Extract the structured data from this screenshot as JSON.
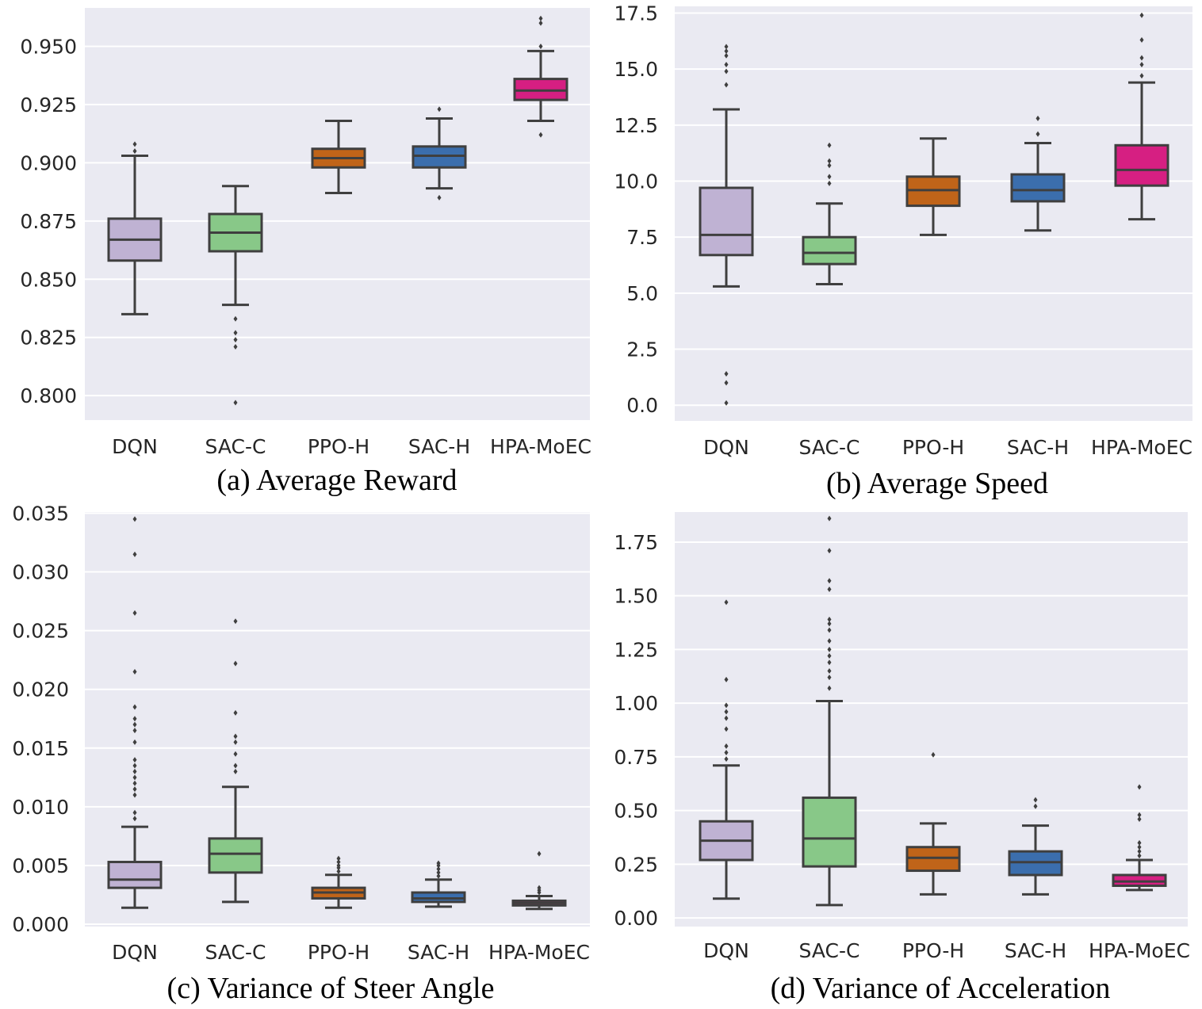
{
  "chart_data": [
    {
      "type": "box",
      "caption": "(a) Average Reward",
      "categories": [
        "DQN",
        "SAC-C",
        "PPO-H",
        "SAC-H",
        "HPA-MoEC"
      ],
      "colors": [
        "#bfb2d3",
        "#88c888",
        "#c06419",
        "#3b6ead",
        "#d61f82"
      ],
      "yticks": [
        "0.800",
        "0.825",
        "0.850",
        "0.875",
        "0.900",
        "0.925",
        "0.950"
      ],
      "ylim": [
        0.7895,
        0.9665
      ],
      "boxes": [
        {
          "whislo": 0.835,
          "q1": 0.858,
          "med": 0.867,
          "q3": 0.876,
          "whishi": 0.903,
          "fliers": [
            0.905,
            0.908
          ]
        },
        {
          "whislo": 0.839,
          "q1": 0.862,
          "med": 0.87,
          "q3": 0.878,
          "whishi": 0.89,
          "fliers": [
            0.833,
            0.827,
            0.824,
            0.821,
            0.797
          ]
        },
        {
          "whislo": 0.887,
          "q1": 0.898,
          "med": 0.902,
          "q3": 0.906,
          "whishi": 0.918,
          "fliers": []
        },
        {
          "whislo": 0.889,
          "q1": 0.898,
          "med": 0.903,
          "q3": 0.907,
          "whishi": 0.919,
          "fliers": [
            0.923,
            0.885
          ]
        },
        {
          "whislo": 0.918,
          "q1": 0.927,
          "med": 0.931,
          "q3": 0.936,
          "whishi": 0.948,
          "fliers": [
            0.95,
            0.96,
            0.962,
            0.912
          ]
        }
      ]
    },
    {
      "type": "box",
      "caption": "(b) Average Speed",
      "categories": [
        "DQN",
        "SAC-C",
        "PPO-H",
        "SAC-H",
        "HPA-MoEC"
      ],
      "colors": [
        "#bfb2d3",
        "#88c888",
        "#c06419",
        "#3b6ead",
        "#d61f82"
      ],
      "yticks": [
        "0.0",
        "2.5",
        "5.0",
        "7.5",
        "10.0",
        "12.5",
        "15.0",
        "17.5"
      ],
      "ylim": [
        -0.7,
        17.8
      ],
      "boxes": [
        {
          "whislo": 5.3,
          "q1": 6.7,
          "med": 7.6,
          "q3": 9.7,
          "whishi": 13.2,
          "fliers": [
            14.3,
            14.9,
            15.2,
            15.6,
            15.8,
            16.0,
            1.4,
            1.0,
            0.1
          ]
        },
        {
          "whislo": 5.4,
          "q1": 6.3,
          "med": 6.8,
          "q3": 7.5,
          "whishi": 9.0,
          "fliers": [
            9.9,
            10.2,
            10.7,
            10.9,
            11.6
          ]
        },
        {
          "whislo": 7.6,
          "q1": 8.9,
          "med": 9.6,
          "q3": 10.2,
          "whishi": 11.9,
          "fliers": []
        },
        {
          "whislo": 7.8,
          "q1": 9.1,
          "med": 9.6,
          "q3": 10.3,
          "whishi": 11.7,
          "fliers": [
            12.1,
            12.8
          ]
        },
        {
          "whislo": 8.3,
          "q1": 9.8,
          "med": 10.5,
          "q3": 11.6,
          "whishi": 14.4,
          "fliers": [
            14.7,
            15.2,
            15.5,
            16.3,
            17.4
          ]
        }
      ]
    },
    {
      "type": "box",
      "caption": "(c) Variance of Steer Angle",
      "categories": [
        "DQN",
        "SAC-C",
        "PPO-H",
        "SAC-H",
        "HPA-MoEC"
      ],
      "colors": [
        "#bfb2d3",
        "#88c888",
        "#c06419",
        "#3b6ead",
        "#d61f82"
      ],
      "yticks": [
        "0.000",
        "0.005",
        "0.010",
        "0.015",
        "0.020",
        "0.025",
        "0.030",
        "0.035"
      ],
      "ylim": [
        -0.0002,
        0.0351
      ],
      "boxes": [
        {
          "whislo": 0.0014,
          "q1": 0.0031,
          "med": 0.0038,
          "q3": 0.0053,
          "whishi": 0.0083,
          "fliers": [
            0.009,
            0.0095,
            0.011,
            0.0115,
            0.012,
            0.0125,
            0.013,
            0.0135,
            0.014,
            0.0155,
            0.0165,
            0.017,
            0.0175,
            0.0185,
            0.0215,
            0.0265,
            0.0315,
            0.0345
          ]
        },
        {
          "whislo": 0.0019,
          "q1": 0.0044,
          "med": 0.006,
          "q3": 0.0073,
          "whishi": 0.0117,
          "fliers": [
            0.013,
            0.0135,
            0.0145,
            0.0155,
            0.016,
            0.018,
            0.0222,
            0.0258
          ]
        },
        {
          "whislo": 0.0014,
          "q1": 0.0022,
          "med": 0.0027,
          "q3": 0.0031,
          "whishi": 0.0042,
          "fliers": [
            0.0045,
            0.0048,
            0.005,
            0.0053,
            0.0056
          ]
        },
        {
          "whislo": 0.0015,
          "q1": 0.0019,
          "med": 0.0022,
          "q3": 0.0027,
          "whishi": 0.0038,
          "fliers": [
            0.0041,
            0.0044,
            0.0047,
            0.005,
            0.0052
          ]
        },
        {
          "whislo": 0.0013,
          "q1": 0.0016,
          "med": 0.0018,
          "q3": 0.002,
          "whishi": 0.0024,
          "fliers": [
            0.0027,
            0.0029,
            0.0031,
            0.006
          ]
        }
      ]
    },
    {
      "type": "box",
      "caption": "(d) Variance of Acceleration",
      "categories": [
        "DQN",
        "SAC-C",
        "PPO-H",
        "SAC-H",
        "HPA-MoEC"
      ],
      "colors": [
        "#bfb2d3",
        "#88c888",
        "#c06419",
        "#3b6ead",
        "#d61f82"
      ],
      "yticks": [
        "0.00",
        "0.25",
        "0.50",
        "0.75",
        "1.00",
        "1.25",
        "1.50",
        "1.75"
      ],
      "ylim": [
        -0.04,
        1.89
      ],
      "boxes": [
        {
          "whislo": 0.09,
          "q1": 0.27,
          "med": 0.36,
          "q3": 0.45,
          "whishi": 0.71,
          "fliers": [
            0.74,
            0.77,
            0.8,
            0.88,
            0.93,
            0.96,
            0.99,
            1.11,
            1.47
          ]
        },
        {
          "whislo": 0.06,
          "q1": 0.24,
          "med": 0.37,
          "q3": 0.56,
          "whishi": 1.01,
          "fliers": [
            1.07,
            1.12,
            1.15,
            1.19,
            1.22,
            1.25,
            1.29,
            1.34,
            1.37,
            1.39,
            1.53,
            1.57,
            1.71,
            1.86
          ]
        },
        {
          "whislo": 0.11,
          "q1": 0.22,
          "med": 0.28,
          "q3": 0.33,
          "whishi": 0.44,
          "fliers": [
            0.76
          ]
        },
        {
          "whislo": 0.11,
          "q1": 0.2,
          "med": 0.26,
          "q3": 0.31,
          "whishi": 0.43,
          "fliers": [
            0.52,
            0.55
          ]
        },
        {
          "whislo": 0.13,
          "q1": 0.15,
          "med": 0.17,
          "q3": 0.2,
          "whishi": 0.27,
          "fliers": [
            0.29,
            0.31,
            0.33,
            0.35,
            0.46,
            0.48,
            0.61
          ]
        }
      ]
    }
  ]
}
